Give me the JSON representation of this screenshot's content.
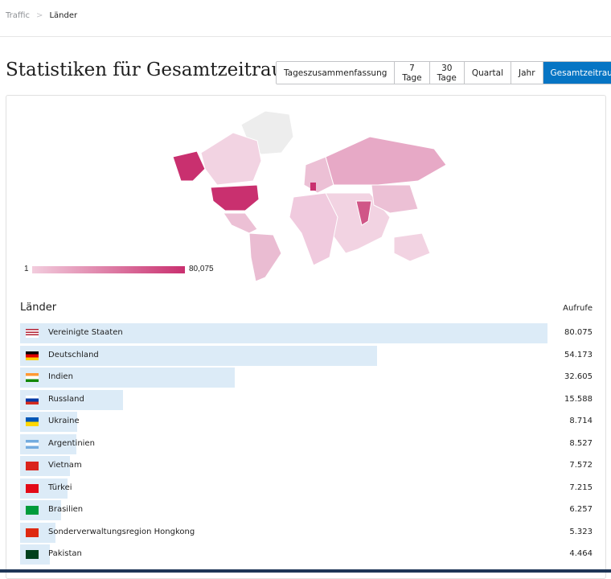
{
  "breadcrumb": {
    "parent": "Traffic",
    "current": "Länder"
  },
  "header": {
    "title": "Statistiken für Gesamtzeitraum"
  },
  "periods": {
    "options": [
      "Tageszusammenfassung",
      "7 Tage",
      "30 Tage",
      "Quartal",
      "Jahr",
      "Gesamtzeitraum"
    ],
    "selected": 5
  },
  "map_legend": {
    "min": 1,
    "max": {
      "value": 80075,
      "label": "80,075"
    }
  },
  "countries": {
    "column_label": "Länder",
    "value_column_label": "Aufrufe",
    "names": [
      "Vereinigte Staaten",
      "Deutschland",
      "Indien",
      "Russland",
      "Ukraine",
      "Argentinien",
      "Vietnam",
      "Türkei",
      "Brasilien",
      "Sonderverwaltungsregion Hongkong",
      "Pakistan"
    ],
    "values": [
      80075,
      54173,
      32605,
      15588,
      8714,
      8527,
      7572,
      7215,
      6257,
      5323,
      4464
    ],
    "value_labels": [
      "80.075",
      "54.173",
      "32.605",
      "15.588",
      "8.714",
      "8.527",
      "7.572",
      "7.215",
      "6.257",
      "5.323",
      "4.464"
    ]
  }
}
